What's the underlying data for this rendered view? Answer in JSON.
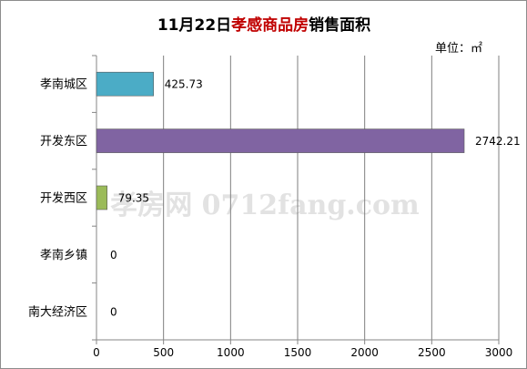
{
  "chart_data": {
    "type": "bar",
    "orientation": "horizontal",
    "title": {
      "date": "11月22日",
      "city": "孝感商品房",
      "suffix": "销售面积"
    },
    "unit": "单位：㎡",
    "categories": [
      "孝南城区",
      "开发东区",
      "开发西区",
      "孝南乡镇",
      "南大经济区"
    ],
    "values": [
      425.73,
      2742.21,
      79.35,
      0,
      0
    ],
    "value_labels": [
      "425.73",
      "2742.21",
      "79.35",
      "0",
      "0"
    ],
    "bar_colors": [
      "#4bacc6",
      "#8064a2",
      "#9bbb59",
      "#4f81bd",
      "#c0504d"
    ],
    "xlim": [
      0,
      3000
    ],
    "xticks": [
      0,
      500,
      1000,
      1500,
      2000,
      2500,
      3000
    ],
    "grid": "vertical",
    "legend": "none",
    "watermark": "孝房网 0712fang.com",
    "colors": {
      "title_date": "#1a1a1a",
      "title_city": "#c00000",
      "title_suffix": "#1a1a1a",
      "grid": "#7f7f7f",
      "text": "#000000"
    }
  }
}
